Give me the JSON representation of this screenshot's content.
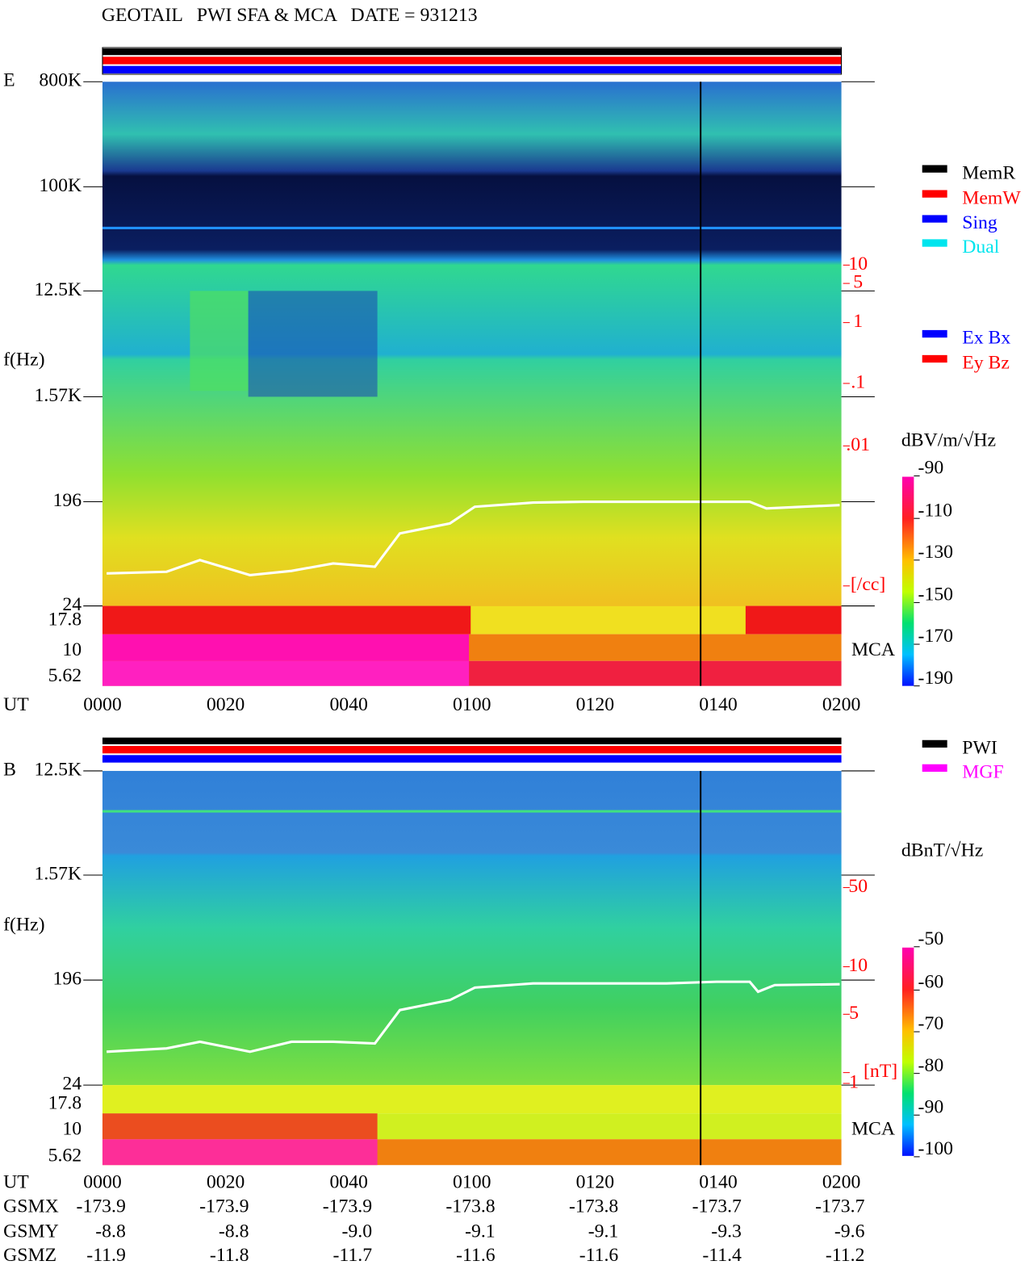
{
  "title": "GEOTAIL   PWI SFA & MCA   DATE = 931213",
  "panels": [
    {
      "label": "E",
      "y_axis_label": "f(Hz)",
      "freq_labels": [
        "800K",
        "100K",
        "12.5K",
        "1.57K",
        "196",
        "24",
        "17.8",
        "10",
        "5.62"
      ],
      "density_labels": [
        "10",
        "5",
        "1",
        ".1",
        ".01",
        "[/cc]"
      ],
      "mca_label": "MCA",
      "time_axis_label": "UT",
      "time_labels": [
        "0000",
        "0020",
        "0040",
        "0100",
        "0120",
        "0140",
        "0200"
      ],
      "colorbar_unit": "dBV/m/√Hz",
      "colorbar_ticks": [
        "-90",
        "-110",
        "-130",
        "-150",
        "-170",
        "-190"
      ],
      "legend": [
        {
          "name": "MemR",
          "color": "#000000"
        },
        {
          "name": "MemW",
          "color": "#ff0000"
        },
        {
          "name": "Sing",
          "color": "#0000ff"
        },
        {
          "name": "Dual",
          "color": "#00e5ee"
        },
        {
          "name": "Ex Bx",
          "color": "#0000ff"
        },
        {
          "name": "Ey Bz",
          "color": "#ff0000"
        }
      ]
    },
    {
      "label": "B",
      "y_axis_label": "f(Hz)",
      "freq_labels": [
        "12.5K",
        "1.57K",
        "196",
        "24",
        "17.8",
        "10",
        "5.62"
      ],
      "density_labels": [
        "50",
        "10",
        "5",
        "1",
        "[nT]"
      ],
      "mca_label": "MCA",
      "time_axis_label": "UT",
      "time_labels": [
        "0000",
        "0020",
        "0040",
        "0100",
        "0120",
        "0140",
        "0200"
      ],
      "colorbar_unit": "dBnT/√Hz",
      "colorbar_ticks": [
        "-50",
        "-60",
        "-70",
        "-80",
        "-90",
        "-100"
      ],
      "legend": [
        {
          "name": "PWI",
          "color": "#000000"
        },
        {
          "name": "MGF",
          "color": "#ff00ff"
        }
      ]
    }
  ],
  "orbit": {
    "rows": [
      {
        "label": "GSMX",
        "values": [
          "-173.9",
          "-173.9",
          "-173.9",
          "-173.8",
          "-173.8",
          "-173.7",
          "-173.7"
        ]
      },
      {
        "label": "GSMY",
        "values": [
          "-8.8",
          "-8.8",
          "-9.0",
          "-9.1",
          "-9.1",
          "-9.3",
          "-9.6"
        ]
      },
      {
        "label": "GSMZ",
        "values": [
          "-11.9",
          "-11.8",
          "-11.7",
          "-11.6",
          "-11.6",
          "-11.4",
          "-11.2"
        ]
      }
    ]
  }
}
